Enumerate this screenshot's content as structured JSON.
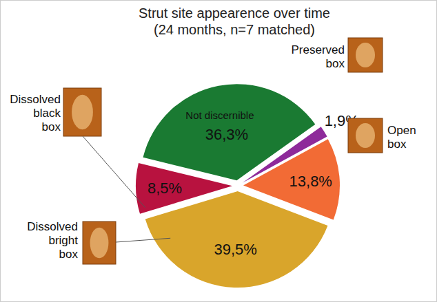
{
  "chart_data": {
    "type": "pie",
    "title": "Strut site appearence over time",
    "subtitle": "(24 months, n=7 matched)",
    "categories": [
      "Preserved box",
      "Open box",
      "Dissolved bright box",
      "Dissolved black box",
      "Not discernible"
    ],
    "values": [
      1.9,
      13.8,
      39.5,
      8.5,
      36.3
    ],
    "value_labels": [
      "1,9%",
      "13,8%",
      "39,5%",
      "8,5%",
      "36,3%"
    ],
    "colors": [
      "#8e2a9a",
      "#f26b35",
      "#d9a52b",
      "#b8123f",
      "#1a7a32"
    ],
    "data_labels": true
  }
}
